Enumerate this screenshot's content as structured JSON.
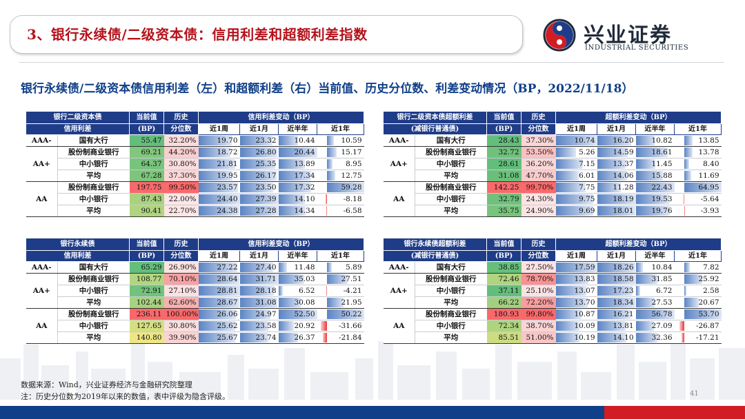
{
  "header": {
    "title": "3、银行永续债/二级资本债：信用利差和超额利差指数"
  },
  "logo": {
    "name_cn": "兴业证券",
    "name_en": "INDUSTRIAL SECURITIES"
  },
  "subtitle": "银行永续债/二级资本债信用利差（左）和超额利差（右）当前值、历史分位数、利差变动情况（BP，2022/11/18）",
  "colors": {
    "header_fill": "#1f3c88",
    "title_red": "#b5121b",
    "bar_blue": "#5b84c4",
    "bar_red": "#e8383a",
    "band_blue": "#0f3f88",
    "band_red": "#d21c24"
  },
  "tables": [
    {
      "id": "t1",
      "h_name": [
        "银行二级资本债",
        "信用利差"
      ],
      "h_cur": [
        "当前值",
        "(BP)"
      ],
      "h_hist": [
        "历史",
        "分位数"
      ],
      "h_change": "信用利差变动（BP）",
      "periods": [
        "近1周",
        "近1月",
        "近半年",
        "近1年"
      ],
      "rows": [
        {
          "grade": "AAA-",
          "bank": "国有大行",
          "cur": "55.47",
          "hist": "32.20%",
          "c": [
            "19.70",
            "23.32",
            "10.44",
            "10.59"
          ]
        },
        {
          "grade": "AA+",
          "bank": "股份制商业银行",
          "cur": "69.21",
          "hist": "44.20%",
          "c": [
            "18.72",
            "26.80",
            "20.44",
            "15.17"
          ]
        },
        {
          "grade": "",
          "bank": "中小银行",
          "cur": "64.37",
          "hist": "30.80%",
          "c": [
            "21.81",
            "25.35",
            "13.89",
            "8.95"
          ]
        },
        {
          "grade": "",
          "bank": "平均",
          "cur": "67.28",
          "hist": "37.30%",
          "c": [
            "19.95",
            "26.17",
            "17.34",
            "12.75"
          ]
        },
        {
          "grade": "AA",
          "bank": "股份制商业银行",
          "cur": "197.75",
          "hist": "99.50%",
          "c": [
            "23.57",
            "23.50",
            "17.32",
            "59.28"
          ]
        },
        {
          "grade": "",
          "bank": "中小银行",
          "cur": "87.43",
          "hist": "22.00%",
          "c": [
            "24.40",
            "27.39",
            "14.10",
            "-8.18"
          ]
        },
        {
          "grade": "",
          "bank": "平均",
          "cur": "90.41",
          "hist": "22.70%",
          "c": [
            "24.38",
            "27.28",
            "14.34",
            "-6.58"
          ]
        }
      ]
    },
    {
      "id": "t2",
      "h_name": [
        "银行二级资本债超额利差",
        "(减银行普通债)"
      ],
      "h_cur": [
        "当前值",
        "(BP)"
      ],
      "h_hist": [
        "历史",
        "分位数"
      ],
      "h_change": "超额利差变动（BP）",
      "periods": [
        "近1周",
        "近1月",
        "近半年",
        "近1年"
      ],
      "rows": [
        {
          "grade": "AAA-",
          "bank": "国有大行",
          "cur": "28.43",
          "hist": "37.30%",
          "c": [
            "10.74",
            "16.20",
            "10.82",
            "13.85"
          ]
        },
        {
          "grade": "AA+",
          "bank": "股份制商业银行",
          "cur": "32.72",
          "hist": "53.50%",
          "c": [
            "5.26",
            "14.59",
            "18.61",
            "13.78"
          ]
        },
        {
          "grade": "",
          "bank": "中小银行",
          "cur": "28.61",
          "hist": "36.20%",
          "c": [
            "7.15",
            "13.37",
            "11.45",
            "8.40"
          ]
        },
        {
          "grade": "",
          "bank": "平均",
          "cur": "31.08",
          "hist": "47.70%",
          "c": [
            "6.01",
            "14.06",
            "15.88",
            "11.69"
          ]
        },
        {
          "grade": "AA",
          "bank": "股份制商业银行",
          "cur": "142.25",
          "hist": "99.70%",
          "c": [
            "7.75",
            "11.28",
            "22.43",
            "64.95"
          ]
        },
        {
          "grade": "",
          "bank": "中小银行",
          "cur": "32.79",
          "hist": "24.30%",
          "c": [
            "9.75",
            "18.19",
            "19.53",
            "-5.64"
          ]
        },
        {
          "grade": "",
          "bank": "平均",
          "cur": "35.75",
          "hist": "24.90%",
          "c": [
            "9.69",
            "18.01",
            "19.76",
            "-3.93"
          ]
        }
      ]
    },
    {
      "id": "t3",
      "h_name": [
        "银行永续债",
        "信用利差"
      ],
      "h_cur": [
        "当前值",
        "(BP)"
      ],
      "h_hist": [
        "历史",
        "分位数"
      ],
      "h_change": "信用利差变动（BP）",
      "periods": [
        "近1周",
        "近1月",
        "近半年",
        "近1年"
      ],
      "rows": [
        {
          "grade": "AAA-",
          "bank": "国有大行",
          "cur": "65.29",
          "hist": "26.90%",
          "c": [
            "27.22",
            "27.40",
            "11.48",
            "5.89"
          ]
        },
        {
          "grade": "AA+",
          "bank": "股份制商业银行",
          "cur": "108.77",
          "hist": "70.10%",
          "c": [
            "28.64",
            "31.71",
            "35.03",
            "27.51"
          ]
        },
        {
          "grade": "",
          "bank": "中小银行",
          "cur": "72.91",
          "hist": "27.10%",
          "c": [
            "28.81",
            "28.18",
            "6.52",
            "-4.21"
          ]
        },
        {
          "grade": "",
          "bank": "平均",
          "cur": "102.44",
          "hist": "62.60%",
          "c": [
            "28.67",
            "31.08",
            "30.08",
            "21.95"
          ]
        },
        {
          "grade": "AA",
          "bank": "股份制商业银行",
          "cur": "236.11",
          "hist": "100.00%",
          "c": [
            "26.06",
            "24.97",
            "52.50",
            "50.22"
          ]
        },
        {
          "grade": "",
          "bank": "中小银行",
          "cur": "127.65",
          "hist": "30.80%",
          "c": [
            "25.62",
            "23.58",
            "20.92",
            "-31.66"
          ]
        },
        {
          "grade": "",
          "bank": "平均",
          "cur": "140.80",
          "hist": "39.90%",
          "c": [
            "25.67",
            "23.74",
            "26.37",
            "-21.84"
          ]
        }
      ]
    },
    {
      "id": "t4",
      "h_name": [
        "银行永续债超额利差",
        "(减银行普通债)"
      ],
      "h_cur": [
        "当前值",
        "(BP)"
      ],
      "h_hist": [
        "历史",
        "分位数"
      ],
      "h_change": "超额利差变动（BP）",
      "periods": [
        "近1周",
        "近1月",
        "近半年",
        "近1年"
      ],
      "rows": [
        {
          "grade": "AAA-",
          "bank": "国有大行",
          "cur": "38.85",
          "hist": "27.50%",
          "c": [
            "17.59",
            "18.26",
            "10.84",
            "7.82"
          ]
        },
        {
          "grade": "AA+",
          "bank": "股份制商业银行",
          "cur": "72.46",
          "hist": "78.70%",
          "c": [
            "13.83",
            "18.58",
            "31.85",
            "25.92"
          ]
        },
        {
          "grade": "",
          "bank": "中小银行",
          "cur": "37.11",
          "hist": "25.10%",
          "c": [
            "13.07",
            "17.23",
            "6.72",
            "2.58"
          ]
        },
        {
          "grade": "",
          "bank": "平均",
          "cur": "66.22",
          "hist": "72.20%",
          "c": [
            "13.70",
            "18.34",
            "27.53",
            "20.67"
          ]
        },
        {
          "grade": "AA",
          "bank": "股份制商业银行",
          "cur": "180.93",
          "hist": "99.80%",
          "c": [
            "10.87",
            "16.21",
            "56.78",
            "53.70"
          ]
        },
        {
          "grade": "",
          "bank": "中小银行",
          "cur": "72.34",
          "hist": "38.70%",
          "c": [
            "10.09",
            "13.81",
            "27.09",
            "-26.87"
          ]
        },
        {
          "grade": "",
          "bank": "平均",
          "cur": "85.51",
          "hist": "51.00%",
          "c": [
            "10.19",
            "14.10",
            "32.36",
            "-17.21"
          ]
        }
      ]
    }
  ],
  "footnotes": {
    "source": "数据来源：Wind，兴业证券经济与金融研究院整理",
    "note": "注：历史分位数为2019年以来的数值，表中评级为隐含评级。"
  },
  "page_number": "41"
}
